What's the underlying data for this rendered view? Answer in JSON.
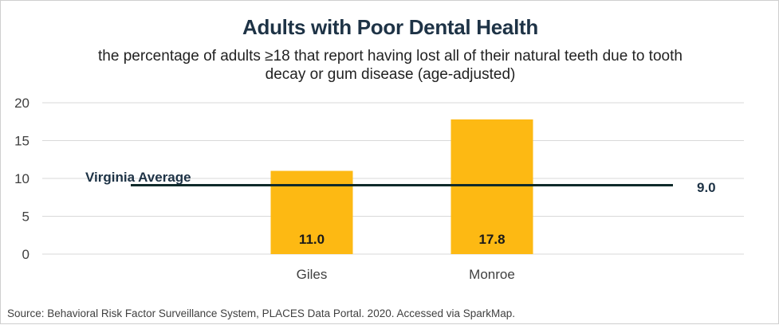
{
  "chart_data": {
    "type": "bar",
    "title": "Adults with Poor Dental Health",
    "subtitle": "the percentage of adults ≥18 that report having lost all of their natural teeth due to tooth decay or gum disease (age-adjusted)",
    "categories": [
      "Giles",
      "Monroe"
    ],
    "values": [
      11.0,
      17.8
    ],
    "value_labels": [
      "11.0",
      "17.8"
    ],
    "ylim": [
      0,
      20
    ],
    "yticks": [
      0,
      5,
      10,
      15,
      20
    ],
    "xlabel": "",
    "ylabel": "",
    "grid": true,
    "reference_line": {
      "label": "Virginia Average",
      "value": 9.0,
      "value_label": "9.0"
    }
  },
  "colors": {
    "bar": "#fdb913",
    "reference_line": "#0f2a2a",
    "gridline": "#d9d9d9"
  },
  "source": "Source:  Behavioral Risk Factor Surveillance System, PLACES Data Portal. 2020. Accessed via SparkMap."
}
